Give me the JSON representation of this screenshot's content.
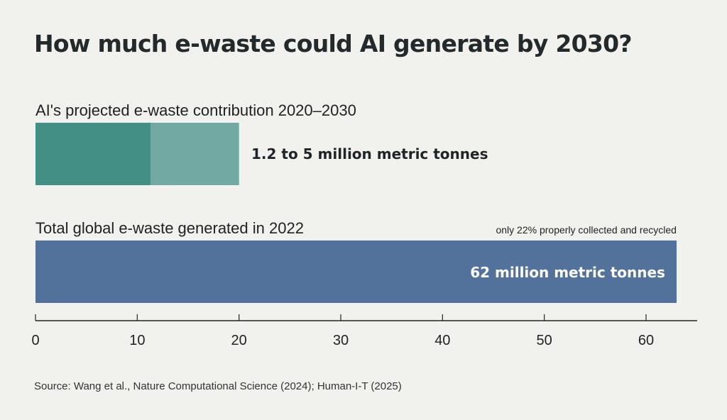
{
  "title": "How much e-waste could AI generate by 2030?",
  "source": "Source: Wang et al., Nature Computational Science (2024); Human-I-T (2025)",
  "colors": {
    "background": "#f1f1ed",
    "ai_low": "#438f86",
    "ai_high": "#72aaa3",
    "global_total": "#52729b",
    "axis": "#222222"
  },
  "chart_data": {
    "type": "bar",
    "orientation": "horizontal",
    "xlim": [
      0,
      63
    ],
    "xticks": [
      0,
      10,
      20,
      30,
      40,
      50,
      60
    ],
    "grid": false,
    "bars": [
      {
        "id": "ai",
        "label": "AI's projected e-waste contribution 2020–2030",
        "range": [
          1.2,
          5
        ],
        "display_max": 20,
        "value_label": "1.2 to 5 million metric tonnes"
      },
      {
        "id": "global",
        "label": "Total global e-waste generated in 2022",
        "value": 62,
        "display_max": 63,
        "value_label": "62 million metric tonnes",
        "note": "only 22% properly collected and recycled"
      }
    ]
  }
}
